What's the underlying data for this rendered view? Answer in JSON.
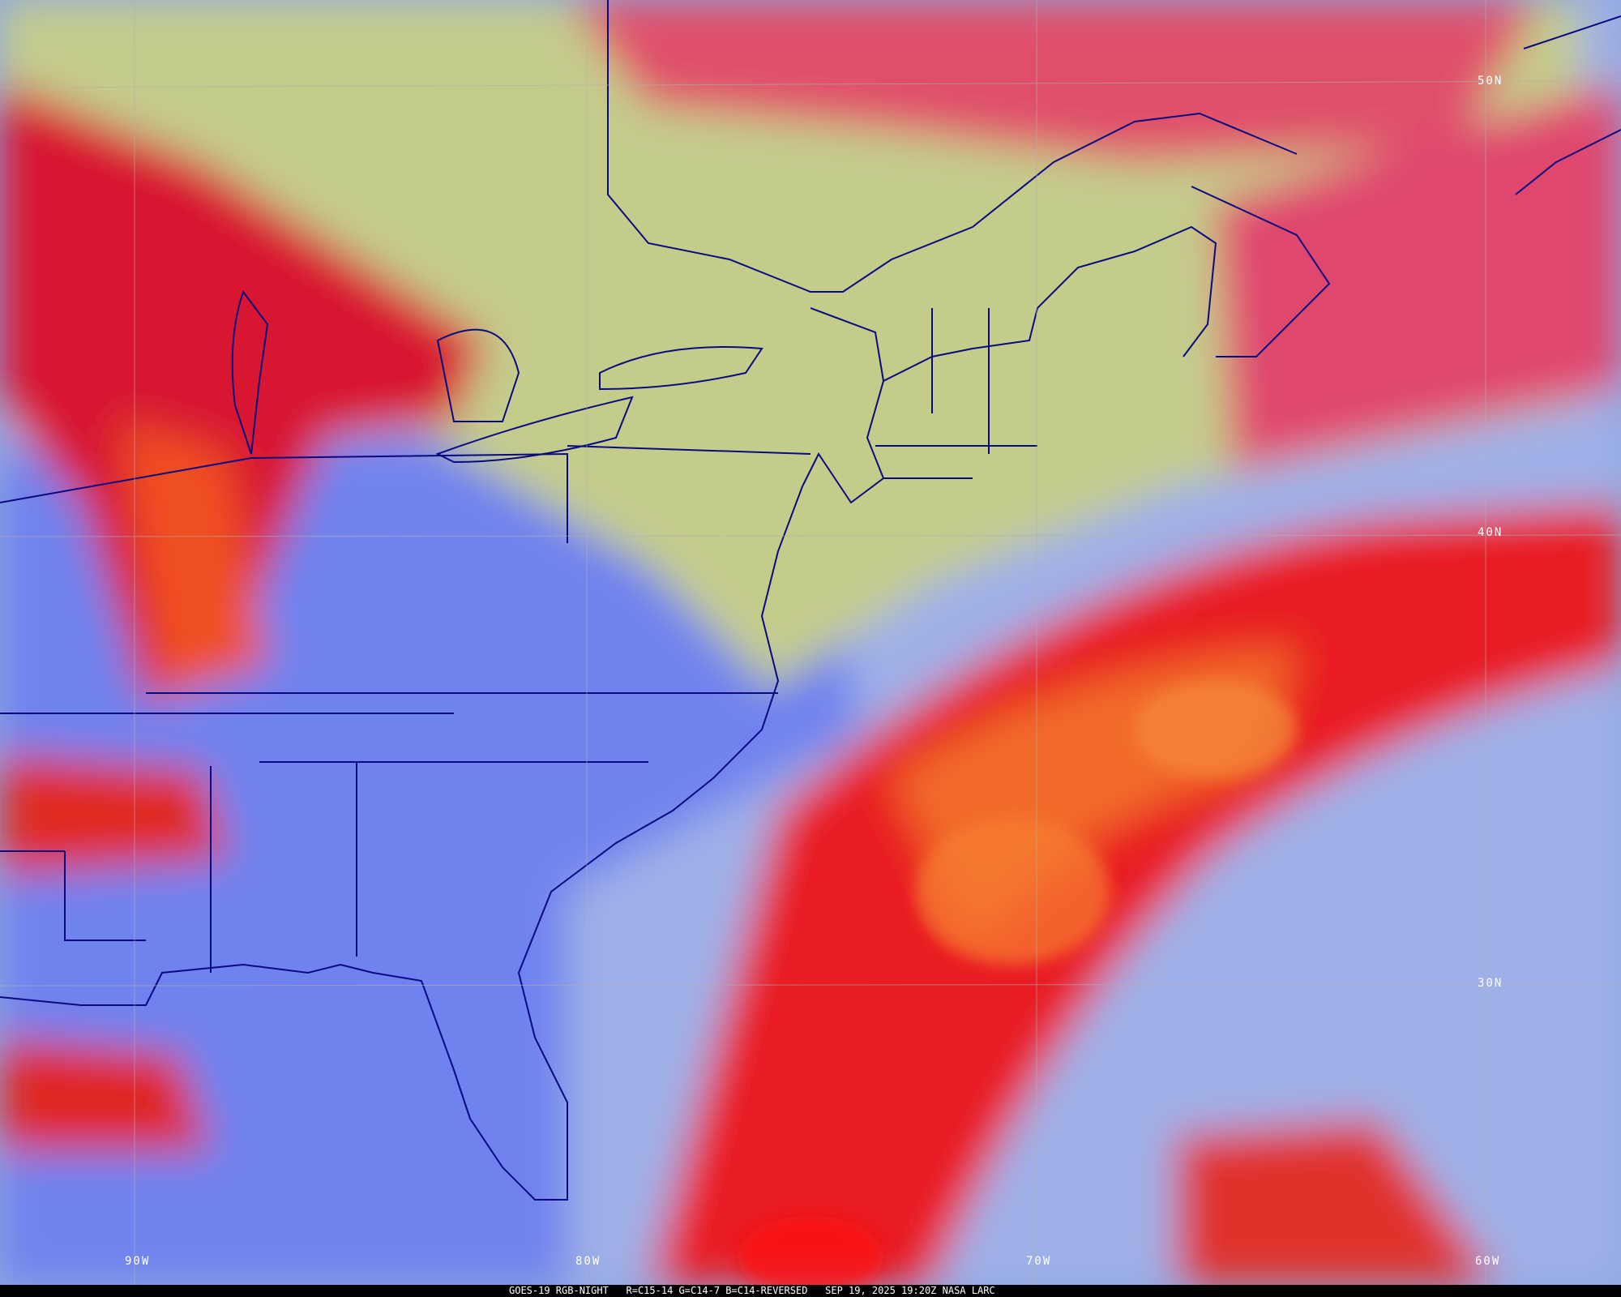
{
  "caption": "GOES-19 RGB-NIGHT   R=C15-14 G=C14-7 B=C14-REVERSED   SEP 19, 2025 19:20Z NASA LARC",
  "grid_labels": {
    "lat": [
      "50N",
      "40N",
      "30N"
    ],
    "lon": [
      "90W",
      "80W",
      "70W",
      "60W"
    ]
  },
  "colors": {
    "coastline": "#0a0a80",
    "grid": "#b0b0b0",
    "clear_land": "#7f8ff0",
    "clear_ocean": "#9fb0e8",
    "low_cloud": "#c4cc8c",
    "high_cloud": "#e81828",
    "caption_bg": "#000000"
  }
}
